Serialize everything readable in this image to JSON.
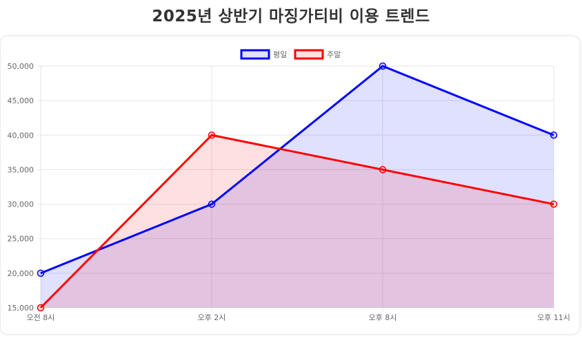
{
  "page": {
    "title": "2025년 상반기 마징가티비 이용 트렌드"
  },
  "chart_data": {
    "type": "line",
    "title": "2025년 상반기 마징가티비 이용 트렌드",
    "categories": [
      "오전 8시",
      "오후 2시",
      "오후 8시",
      "오후 11시"
    ],
    "series": [
      {
        "name": "평일",
        "values": [
          20000,
          30000,
          50000,
          40000
        ],
        "color": "#0000ff",
        "fill": "rgba(0,0,255,0.12)"
      },
      {
        "name": "주말",
        "values": [
          15000,
          40000,
          35000,
          30000
        ],
        "color": "#ff0000",
        "fill": "rgba(255,0,0,0.12)"
      }
    ],
    "y_ticks": [
      "15,000",
      "20,000",
      "25,000",
      "30,000",
      "35,000",
      "40,000",
      "45,000",
      "50,000"
    ],
    "ylim": [
      15000,
      50000
    ],
    "grid": true,
    "legend_position": "top",
    "area_fill": true
  }
}
